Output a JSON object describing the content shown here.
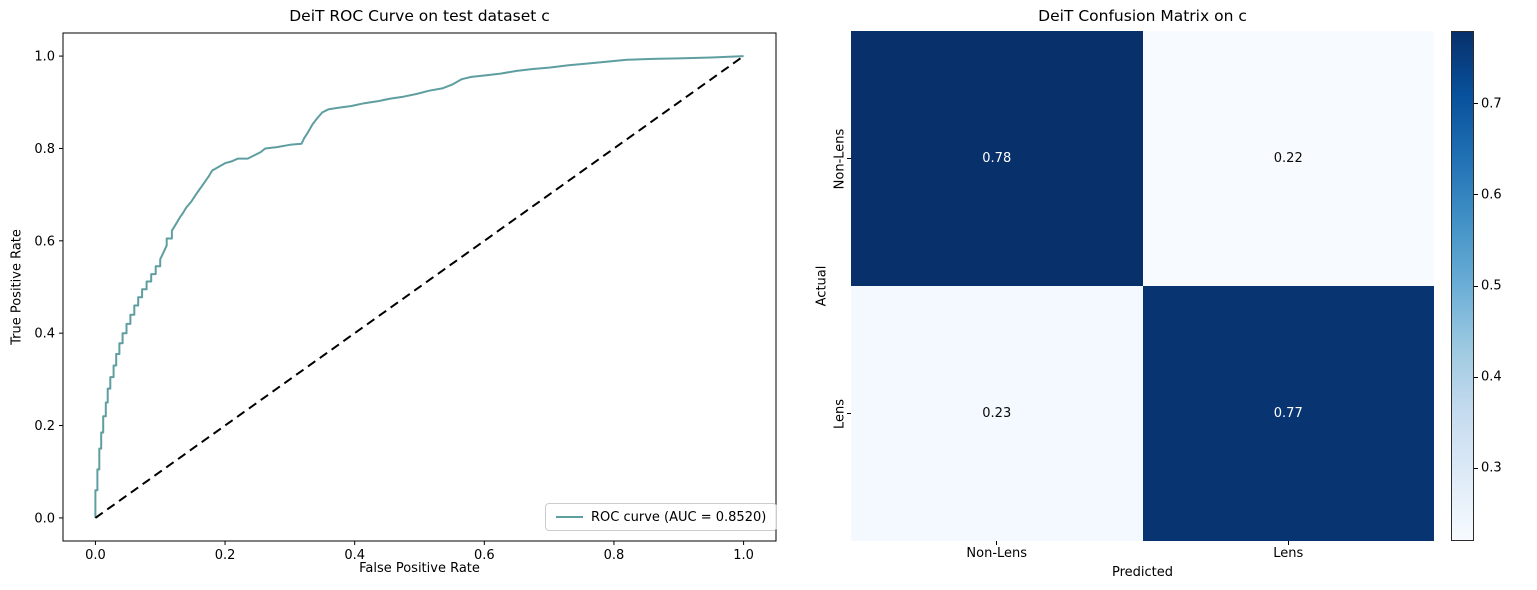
{
  "figure": {
    "background": "#ffffff"
  },
  "chart_data": [
    {
      "type": "line",
      "title": "DeiT ROC Curve on test dataset c",
      "xlabel": "False Positive Rate",
      "ylabel": "True Positive Rate",
      "xlim": [
        -0.05,
        1.05
      ],
      "ylim": [
        -0.05,
        1.05
      ],
      "xticks": [
        0.0,
        0.2,
        0.4,
        0.6,
        0.8,
        1.0
      ],
      "yticks": [
        0.0,
        0.2,
        0.4,
        0.6,
        0.8,
        1.0
      ],
      "grid": false,
      "legend_position": "lower right",
      "series": [
        {
          "name": "ROC curve (AUC = 0.8520)",
          "color": "#5f9ea0",
          "line_style": "solid",
          "line_width": 2,
          "points": [
            [
              0.0,
              0.0
            ],
            [
              0.0,
              0.06
            ],
            [
              0.003,
              0.06
            ],
            [
              0.003,
              0.105
            ],
            [
              0.006,
              0.105
            ],
            [
              0.006,
              0.15
            ],
            [
              0.009,
              0.15
            ],
            [
              0.009,
              0.185
            ],
            [
              0.012,
              0.185
            ],
            [
              0.012,
              0.22
            ],
            [
              0.016,
              0.22
            ],
            [
              0.016,
              0.25
            ],
            [
              0.019,
              0.25
            ],
            [
              0.019,
              0.28
            ],
            [
              0.023,
              0.28
            ],
            [
              0.023,
              0.305
            ],
            [
              0.028,
              0.305
            ],
            [
              0.028,
              0.33
            ],
            [
              0.032,
              0.33
            ],
            [
              0.032,
              0.355
            ],
            [
              0.037,
              0.355
            ],
            [
              0.037,
              0.378
            ],
            [
              0.042,
              0.378
            ],
            [
              0.042,
              0.4
            ],
            [
              0.048,
              0.4
            ],
            [
              0.048,
              0.42
            ],
            [
              0.054,
              0.42
            ],
            [
              0.054,
              0.44
            ],
            [
              0.06,
              0.44
            ],
            [
              0.06,
              0.46
            ],
            [
              0.066,
              0.46
            ],
            [
              0.066,
              0.478
            ],
            [
              0.072,
              0.478
            ],
            [
              0.072,
              0.495
            ],
            [
              0.079,
              0.495
            ],
            [
              0.079,
              0.512
            ],
            [
              0.086,
              0.512
            ],
            [
              0.086,
              0.528
            ],
            [
              0.093,
              0.528
            ],
            [
              0.093,
              0.545
            ],
            [
              0.1,
              0.545
            ],
            [
              0.1,
              0.56
            ],
            [
              0.105,
              0.575
            ],
            [
              0.11,
              0.59
            ],
            [
              0.11,
              0.605
            ],
            [
              0.118,
              0.605
            ],
            [
              0.118,
              0.622
            ],
            [
              0.125,
              0.638
            ],
            [
              0.13,
              0.65
            ],
            [
              0.135,
              0.66
            ],
            [
              0.14,
              0.672
            ],
            [
              0.148,
              0.685
            ],
            [
              0.155,
              0.7
            ],
            [
              0.16,
              0.71
            ],
            [
              0.165,
              0.72
            ],
            [
              0.17,
              0.73
            ],
            [
              0.175,
              0.74
            ],
            [
              0.18,
              0.752
            ],
            [
              0.19,
              0.76
            ],
            [
              0.2,
              0.768
            ],
            [
              0.21,
              0.772
            ],
            [
              0.22,
              0.778
            ],
            [
              0.235,
              0.778
            ],
            [
              0.245,
              0.785
            ],
            [
              0.255,
              0.792
            ],
            [
              0.262,
              0.8
            ],
            [
              0.28,
              0.803
            ],
            [
              0.3,
              0.808
            ],
            [
              0.318,
              0.81
            ],
            [
              0.322,
              0.822
            ],
            [
              0.328,
              0.835
            ],
            [
              0.335,
              0.852
            ],
            [
              0.342,
              0.865
            ],
            [
              0.35,
              0.878
            ],
            [
              0.36,
              0.885
            ],
            [
              0.375,
              0.888
            ],
            [
              0.395,
              0.892
            ],
            [
              0.415,
              0.898
            ],
            [
              0.435,
              0.902
            ],
            [
              0.455,
              0.908
            ],
            [
              0.475,
              0.912
            ],
            [
              0.495,
              0.918
            ],
            [
              0.515,
              0.925
            ],
            [
              0.535,
              0.93
            ],
            [
              0.55,
              0.938
            ],
            [
              0.565,
              0.95
            ],
            [
              0.58,
              0.955
            ],
            [
              0.6,
              0.958
            ],
            [
              0.625,
              0.962
            ],
            [
              0.65,
              0.968
            ],
            [
              0.675,
              0.972
            ],
            [
              0.7,
              0.975
            ],
            [
              0.73,
              0.98
            ],
            [
              0.76,
              0.984
            ],
            [
              0.79,
              0.988
            ],
            [
              0.82,
              0.992
            ],
            [
              0.86,
              0.994
            ],
            [
              0.9,
              0.995
            ],
            [
              0.95,
              0.997
            ],
            [
              1.0,
              1.0
            ]
          ]
        },
        {
          "color": "#000000",
          "line_style": "dashed",
          "line_width": 2,
          "points": [
            [
              0.0,
              0.0
            ],
            [
              1.0,
              1.0
            ]
          ]
        }
      ]
    },
    {
      "type": "heatmap",
      "title": "DeiT Confusion Matrix on c",
      "xlabel": "Predicted",
      "ylabel": "Actual",
      "x_categories": [
        "Non-Lens",
        "Lens"
      ],
      "y_categories": [
        "Non-Lens",
        "Lens"
      ],
      "values": [
        [
          0.78,
          0.22
        ],
        [
          0.23,
          0.77
        ]
      ],
      "vmin": 0.22,
      "vmax": 0.78,
      "colormap": "Blues",
      "colormap_stops": [
        "#f7fbff",
        "#deebf7",
        "#c6dbef",
        "#9ecae1",
        "#6baed6",
        "#4292c6",
        "#2171b5",
        "#08519c",
        "#08306b"
      ],
      "colorbar_ticks": [
        0.3,
        0.4,
        0.5,
        0.6,
        0.7
      ],
      "annotation_color_on_dark": "#ffffff",
      "annotation_color_on_light": "#0a0a0a"
    }
  ]
}
